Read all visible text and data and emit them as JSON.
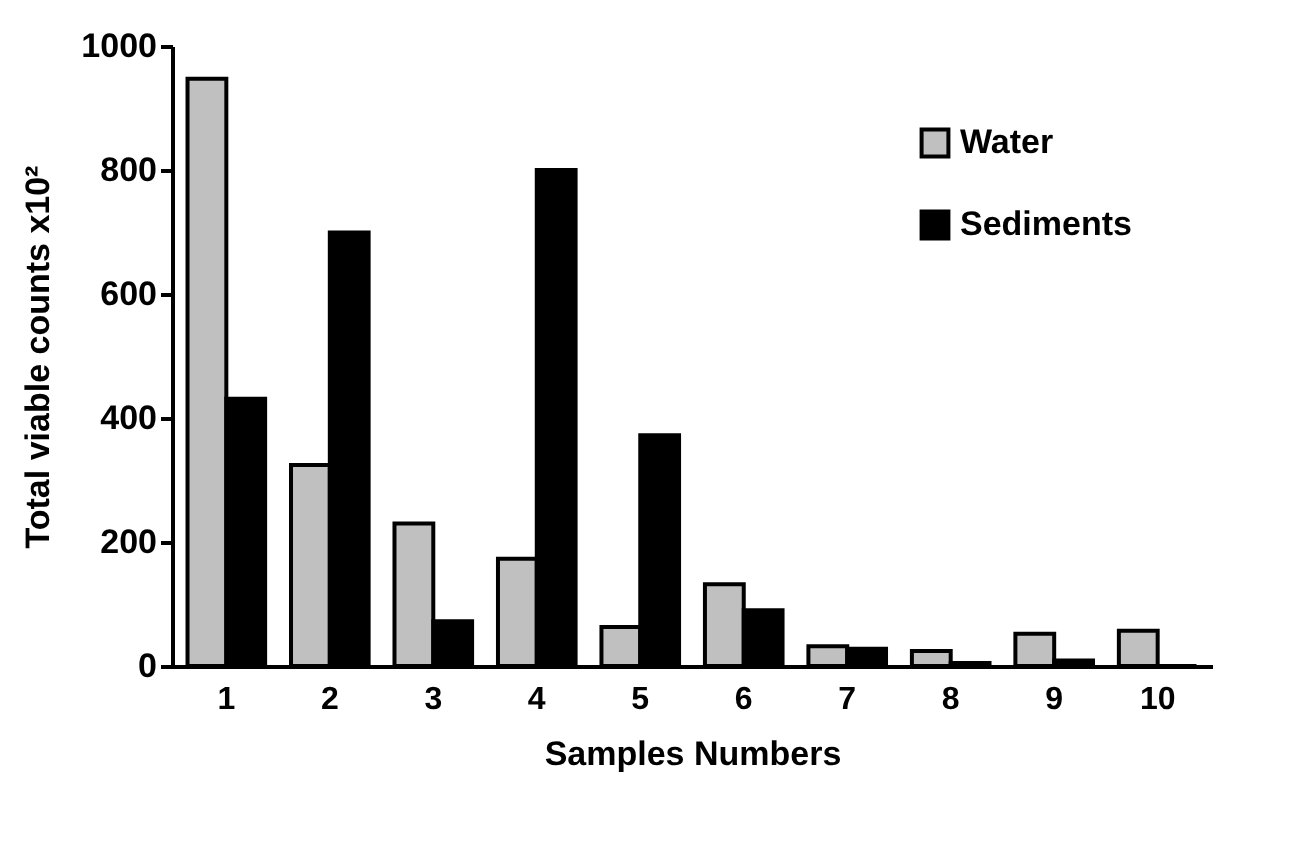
{
  "chart_data": {
    "type": "bar",
    "xlabel": "Samples Numbers",
    "ylabel": "Total viable counts x10²",
    "categories": [
      "1",
      "2",
      "3",
      "4",
      "5",
      "6",
      "7",
      "8",
      "9",
      "10"
    ],
    "series": [
      {
        "name": "Water",
        "color": "#c0c0c0",
        "values": [
          947,
          324,
          230,
          173,
          63,
          132,
          32,
          24,
          52,
          57
        ]
      },
      {
        "name": "Sediments",
        "color": "#000000",
        "values": [
          431,
          699,
          72,
          800,
          372,
          90,
          28,
          5,
          9,
          0
        ]
      }
    ],
    "ylim": [
      0,
      1000
    ],
    "yticks": [
      0,
      200,
      400,
      600,
      800,
      1000
    ],
    "grid": false,
    "legend": "top right"
  }
}
